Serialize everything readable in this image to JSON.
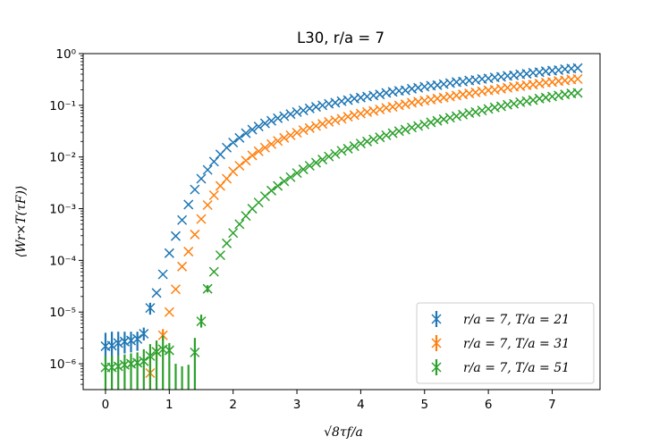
{
  "chart_data": {
    "type": "scatter",
    "title": "L30, r/a = 7",
    "xlabel": "√8τf/a",
    "ylabel": "⟨Wr×T(τF)⟩",
    "xlim": [
      -0.35,
      7.75
    ],
    "ylim_log10": [
      -6.5,
      0
    ],
    "yscale": "log",
    "x_ticks": [
      0,
      1,
      2,
      3,
      4,
      5,
      6,
      7
    ],
    "y_ticks": [
      {
        "exp": 0,
        "label": "10⁰"
      },
      {
        "exp": -1,
        "label": "10⁻¹"
      },
      {
        "exp": -2,
        "label": "10⁻²"
      },
      {
        "exp": -3,
        "label": "10⁻³"
      },
      {
        "exp": -4,
        "label": "10⁻⁴"
      },
      {
        "exp": -5,
        "label": "10⁻⁵"
      },
      {
        "exp": -6,
        "label": "10⁻⁶"
      }
    ],
    "grid": false,
    "legend_position": "lower right",
    "marker": "x",
    "series": [
      {
        "name": "r/a = 7, T/a = 21",
        "color": "#1f77b4",
        "x": [
          0,
          0.1,
          0.2,
          0.3,
          0.4,
          0.5,
          0.6,
          0.7,
          0.8,
          0.9,
          1.0,
          1.1,
          1.2,
          1.3,
          1.4,
          1.5,
          1.6,
          1.7,
          1.8,
          1.9,
          2.0,
          2.1,
          2.2,
          2.3,
          2.4,
          2.5,
          2.6,
          2.7,
          2.8,
          2.9,
          3.0,
          3.1,
          3.2,
          3.3,
          3.4,
          3.5,
          3.6,
          3.7,
          3.8,
          3.9,
          4.0,
          4.1,
          4.2,
          4.3,
          4.4,
          4.5,
          4.6,
          4.7,
          4.8,
          4.9,
          5.0,
          5.1,
          5.2,
          5.3,
          5.4,
          5.5,
          5.6,
          5.7,
          5.8,
          5.9,
          6.0,
          6.1,
          6.2,
          6.3,
          6.4,
          6.5,
          6.6,
          6.7,
          6.8,
          6.9,
          7.0,
          7.1,
          7.2,
          7.3,
          7.4
        ],
        "log10_y": [
          -5.66,
          -5.65,
          -5.6,
          -5.57,
          -5.55,
          -5.52,
          -5.42,
          -4.92,
          -4.63,
          -4.27,
          -3.86,
          -3.53,
          -3.22,
          -2.92,
          -2.63,
          -2.42,
          -2.25,
          -2.09,
          -1.95,
          -1.82,
          -1.72,
          -1.63,
          -1.54,
          -1.47,
          -1.41,
          -1.35,
          -1.3,
          -1.25,
          -1.21,
          -1.17,
          -1.13,
          -1.1,
          -1.06,
          -1.03,
          -1.0,
          -0.97,
          -0.95,
          -0.92,
          -0.9,
          -0.87,
          -0.85,
          -0.83,
          -0.81,
          -0.79,
          -0.76,
          -0.74,
          -0.72,
          -0.71,
          -0.68,
          -0.66,
          -0.64,
          -0.62,
          -0.61,
          -0.59,
          -0.57,
          -0.55,
          -0.54,
          -0.52,
          -0.51,
          -0.49,
          -0.48,
          -0.46,
          -0.45,
          -0.43,
          -0.42,
          -0.4,
          -0.39,
          -0.37,
          -0.36,
          -0.34,
          -0.33,
          -0.32,
          -0.3,
          -0.29,
          -0.28
        ],
        "log10_err": [
          [
            -5.95,
            -5.4
          ],
          [
            -5.95,
            -5.38
          ],
          [
            -5.85,
            -5.38
          ],
          [
            -5.8,
            -5.38
          ],
          [
            -5.78,
            -5.38
          ],
          [
            -5.75,
            -5.38
          ],
          [
            -5.55,
            -5.3
          ],
          [
            -5.05,
            -4.82
          ]
        ]
      },
      {
        "name": "r/a = 7, T/a = 31",
        "color": "#ff7f0e",
        "x": [
          0.7,
          0.8,
          0.9,
          1.0,
          1.1,
          1.2,
          1.3,
          1.4,
          1.5,
          1.6,
          1.7,
          1.8,
          1.9,
          2.0,
          2.1,
          2.2,
          2.3,
          2.4,
          2.5,
          2.6,
          2.7,
          2.8,
          2.9,
          3.0,
          3.1,
          3.2,
          3.3,
          3.4,
          3.5,
          3.6,
          3.7,
          3.8,
          3.9,
          4.0,
          4.1,
          4.2,
          4.3,
          4.4,
          4.5,
          4.6,
          4.7,
          4.8,
          4.9,
          5.0,
          5.1,
          5.2,
          5.3,
          5.4,
          5.5,
          5.6,
          5.7,
          5.8,
          5.9,
          6.0,
          6.1,
          6.2,
          6.3,
          6.4,
          6.5,
          6.6,
          6.7,
          6.8,
          6.9,
          7.0,
          7.1,
          7.2,
          7.3,
          7.4
        ],
        "log10_y": [
          -6.18,
          -5.77,
          -5.45,
          -5.0,
          -4.56,
          -4.12,
          -3.83,
          -3.5,
          -3.2,
          -2.93,
          -2.74,
          -2.56,
          -2.42,
          -2.28,
          -2.17,
          -2.07,
          -1.97,
          -1.89,
          -1.82,
          -1.75,
          -1.69,
          -1.63,
          -1.58,
          -1.53,
          -1.48,
          -1.44,
          -1.4,
          -1.36,
          -1.32,
          -1.29,
          -1.26,
          -1.22,
          -1.19,
          -1.16,
          -1.13,
          -1.11,
          -1.08,
          -1.05,
          -1.03,
          -1.0,
          -0.98,
          -0.95,
          -0.93,
          -0.91,
          -0.89,
          -0.87,
          -0.85,
          -0.83,
          -0.81,
          -0.79,
          -0.77,
          -0.75,
          -0.73,
          -0.71,
          -0.7,
          -0.68,
          -0.66,
          -0.64,
          -0.63,
          -0.61,
          -0.6,
          -0.58,
          -0.56,
          -0.55,
          -0.53,
          -0.52,
          -0.5,
          -0.49
        ],
        "log10_err": [
          [
            -6.5,
            -5.92
          ],
          [
            -5.95,
            -5.6
          ],
          [
            -5.55,
            -5.33
          ]
        ]
      },
      {
        "name": "r/a = 7, T/a = 51",
        "color": "#2ca02c",
        "x": [
          0,
          0.1,
          0.2,
          0.3,
          0.4,
          0.5,
          0.6,
          0.7,
          0.8,
          0.9,
          1.0,
          1.4,
          1.5,
          1.6,
          1.7,
          1.8,
          1.9,
          2.0,
          2.1,
          2.2,
          2.3,
          2.4,
          2.5,
          2.6,
          2.7,
          2.8,
          2.9,
          3.0,
          3.1,
          3.2,
          3.3,
          3.4,
          3.5,
          3.6,
          3.7,
          3.8,
          3.9,
          4.0,
          4.1,
          4.2,
          4.3,
          4.4,
          4.5,
          4.6,
          4.7,
          4.8,
          4.9,
          5.0,
          5.1,
          5.2,
          5.3,
          5.4,
          5.5,
          5.6,
          5.7,
          5.8,
          5.9,
          6.0,
          6.1,
          6.2,
          6.3,
          6.4,
          6.5,
          6.6,
          6.7,
          6.8,
          6.9,
          7.0,
          7.1,
          7.2,
          7.3,
          7.4
        ],
        "log10_y": [
          -6.07,
          -6.07,
          -6.05,
          -6.02,
          -6.0,
          -5.98,
          -5.95,
          -5.85,
          -5.77,
          -5.72,
          -5.74,
          -5.78,
          -5.18,
          -4.55,
          -4.22,
          -3.9,
          -3.67,
          -3.47,
          -3.3,
          -3.14,
          -3.0,
          -2.88,
          -2.76,
          -2.65,
          -2.56,
          -2.47,
          -2.39,
          -2.31,
          -2.24,
          -2.17,
          -2.11,
          -2.05,
          -1.99,
          -1.94,
          -1.88,
          -1.84,
          -1.79,
          -1.74,
          -1.7,
          -1.66,
          -1.62,
          -1.58,
          -1.54,
          -1.5,
          -1.47,
          -1.43,
          -1.4,
          -1.37,
          -1.33,
          -1.3,
          -1.27,
          -1.24,
          -1.21,
          -1.18,
          -1.15,
          -1.13,
          -1.1,
          -1.07,
          -1.04,
          -1.02,
          -0.99,
          -0.97,
          -0.94,
          -0.92,
          -0.9,
          -0.87,
          -0.85,
          -0.83,
          -0.81,
          -0.79,
          -0.77,
          -0.76
        ],
        "log10_err": [
          [
            -6.5,
            -5.85
          ],
          [
            -6.5,
            -5.85
          ],
          [
            -6.5,
            -5.85
          ],
          [
            -6.5,
            -5.82
          ],
          [
            -6.5,
            -5.8
          ],
          [
            -6.5,
            -5.78
          ],
          [
            -6.5,
            -5.72
          ],
          [
            -6.5,
            -5.62
          ],
          [
            -6.5,
            -5.55
          ],
          [
            -6.5,
            -5.45
          ],
          [
            -6.5,
            -5.6
          ],
          [
            -6.5,
            -5.5
          ],
          [
            -5.3,
            -5.05
          ],
          [
            -4.62,
            -4.48
          ]
        ],
        "extra_bars": [
          [
            1.3,
            -6.5,
            -6.02
          ],
          [
            1.2,
            -6.5,
            -6.05
          ],
          [
            1.1,
            -6.5,
            -6.0
          ]
        ]
      }
    ]
  }
}
